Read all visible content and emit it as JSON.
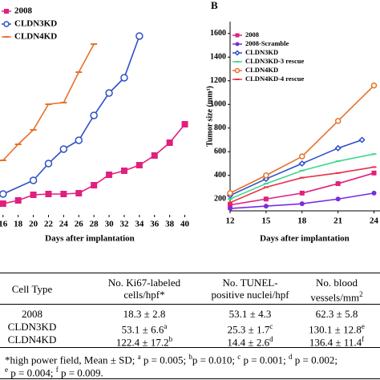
{
  "chart_data": [
    {
      "type": "line",
      "xlabel": "Days after implantation",
      "xlim": [
        15.6,
        41
      ],
      "xticks": [
        16,
        18,
        20,
        22,
        24,
        26,
        28,
        30,
        32,
        34,
        36,
        38,
        40
      ],
      "ylim": [
        0,
        268
      ],
      "series": [
        {
          "name": "2008",
          "color": "#e0207f",
          "marker": "square",
          "x": [
            16,
            18,
            20,
            22,
            24,
            26,
            28,
            30,
            32,
            34,
            36,
            38,
            40
          ],
          "values": [
            14,
            18,
            25,
            26,
            26,
            27,
            37,
            50,
            55,
            62,
            74,
            90,
            113
          ]
        },
        {
          "name": "CLDN3KD",
          "color": "#2c4fc9",
          "marker": "circle-open",
          "x": [
            16,
            20,
            22,
            24,
            26,
            28,
            30,
            32,
            34
          ],
          "values": [
            26,
            43,
            64,
            82,
            93,
            124,
            152,
            171,
            223
          ]
        },
        {
          "name": "CLDN4KD",
          "color": "#e8702a",
          "marker": "dash",
          "x": [
            16,
            18,
            20,
            22,
            24,
            26,
            28
          ],
          "values": [
            68,
            88,
            106,
            138,
            140,
            178,
            213
          ]
        }
      ]
    },
    {
      "type": "line",
      "panel": "B",
      "xlabel": "Days after implantation",
      "ylabel": "Tumor size (mm³)",
      "xlim": [
        12,
        24.5
      ],
      "xticks": [
        12,
        15,
        18,
        21,
        24
      ],
      "ylim": [
        100,
        1700
      ],
      "yticks": [
        200,
        400,
        600,
        800,
        1000,
        1200,
        1400,
        1600
      ],
      "series": [
        {
          "name": "2008",
          "color": "#e0207f",
          "marker": "square",
          "x": [
            12,
            15,
            18,
            21,
            24
          ],
          "values": [
            150,
            200,
            250,
            330,
            420
          ]
        },
        {
          "name": "2008-Scramble",
          "color": "#7a2be0",
          "marker": "circle",
          "x": [
            12,
            15,
            18,
            21,
            24
          ],
          "values": [
            120,
            140,
            160,
            200,
            250
          ]
        },
        {
          "name": "CLDN3KD",
          "color": "#2c4fc9",
          "marker": "diamond-open",
          "x": [
            12,
            15,
            18,
            21,
            23
          ],
          "values": [
            230,
            370,
            500,
            630,
            700
          ]
        },
        {
          "name": "CLDN3KD-3 rescue",
          "color": "#3fd98a",
          "marker": "dash",
          "x": [
            12,
            15,
            18,
            21,
            24
          ],
          "values": [
            200,
            330,
            440,
            520,
            580
          ]
        },
        {
          "name": "CLDN4KD",
          "color": "#e8702a",
          "marker": "circle-open",
          "x": [
            12,
            15,
            18,
            21,
            24
          ],
          "values": [
            250,
            400,
            560,
            860,
            1160
          ]
        },
        {
          "name": "CLDN4KD-4 rescue",
          "color": "#e8304a",
          "marker": "dash",
          "x": [
            12,
            15,
            18,
            21,
            24
          ],
          "values": [
            170,
            300,
            380,
            420,
            470
          ]
        }
      ]
    }
  ],
  "table": {
    "header": [
      [
        "Cell Type"
      ],
      [
        "No. Ki67-labeled",
        "cells/hpf*"
      ],
      [
        "No. TUNEL-",
        "positive nuclei/hpf"
      ],
      [
        "No. blood",
        "vessels/mm"
      ]
    ],
    "header_sup": "2",
    "rows": [
      [
        {
          "text": "2008"
        },
        {
          "text": "18.3 ± 2.8"
        },
        {
          "text": "53.1 ± 4.3"
        },
        {
          "text": "62.3 ± 5.8"
        }
      ],
      [
        {
          "text": "CLDN3KD"
        },
        {
          "text": "53.1 ± 6.6",
          "sup": "a"
        },
        {
          "text": "25.3 ± 1.7",
          "sup": "c"
        },
        {
          "text": "130.1 ± 12.8",
          "sup": "e"
        }
      ],
      [
        {
          "text": "CLDN4KD"
        },
        {
          "text": "122.4 ± 17.2",
          "sup": "b"
        },
        {
          "text": "14.4 ± 2.6",
          "sup": "d"
        },
        {
          "text": "136.4 ± 11.4",
          "sup": "f"
        }
      ]
    ],
    "footnote": [
      [
        {
          "text": "*high power field, Mean ± SD; "
        },
        {
          "sup": "a"
        },
        {
          "text": " p = 0.005; "
        },
        {
          "sup": "b"
        },
        {
          "text": "p = 0.010; "
        },
        {
          "sup": "c"
        },
        {
          "text": " p = 0.001; "
        },
        {
          "sup": "d"
        },
        {
          "text": " p = 0.002;"
        }
      ],
      [
        {
          "sup": "e"
        },
        {
          "text": " p = 0.004; "
        },
        {
          "sup": "f"
        },
        {
          "text": " p = 0.009."
        }
      ]
    ]
  }
}
